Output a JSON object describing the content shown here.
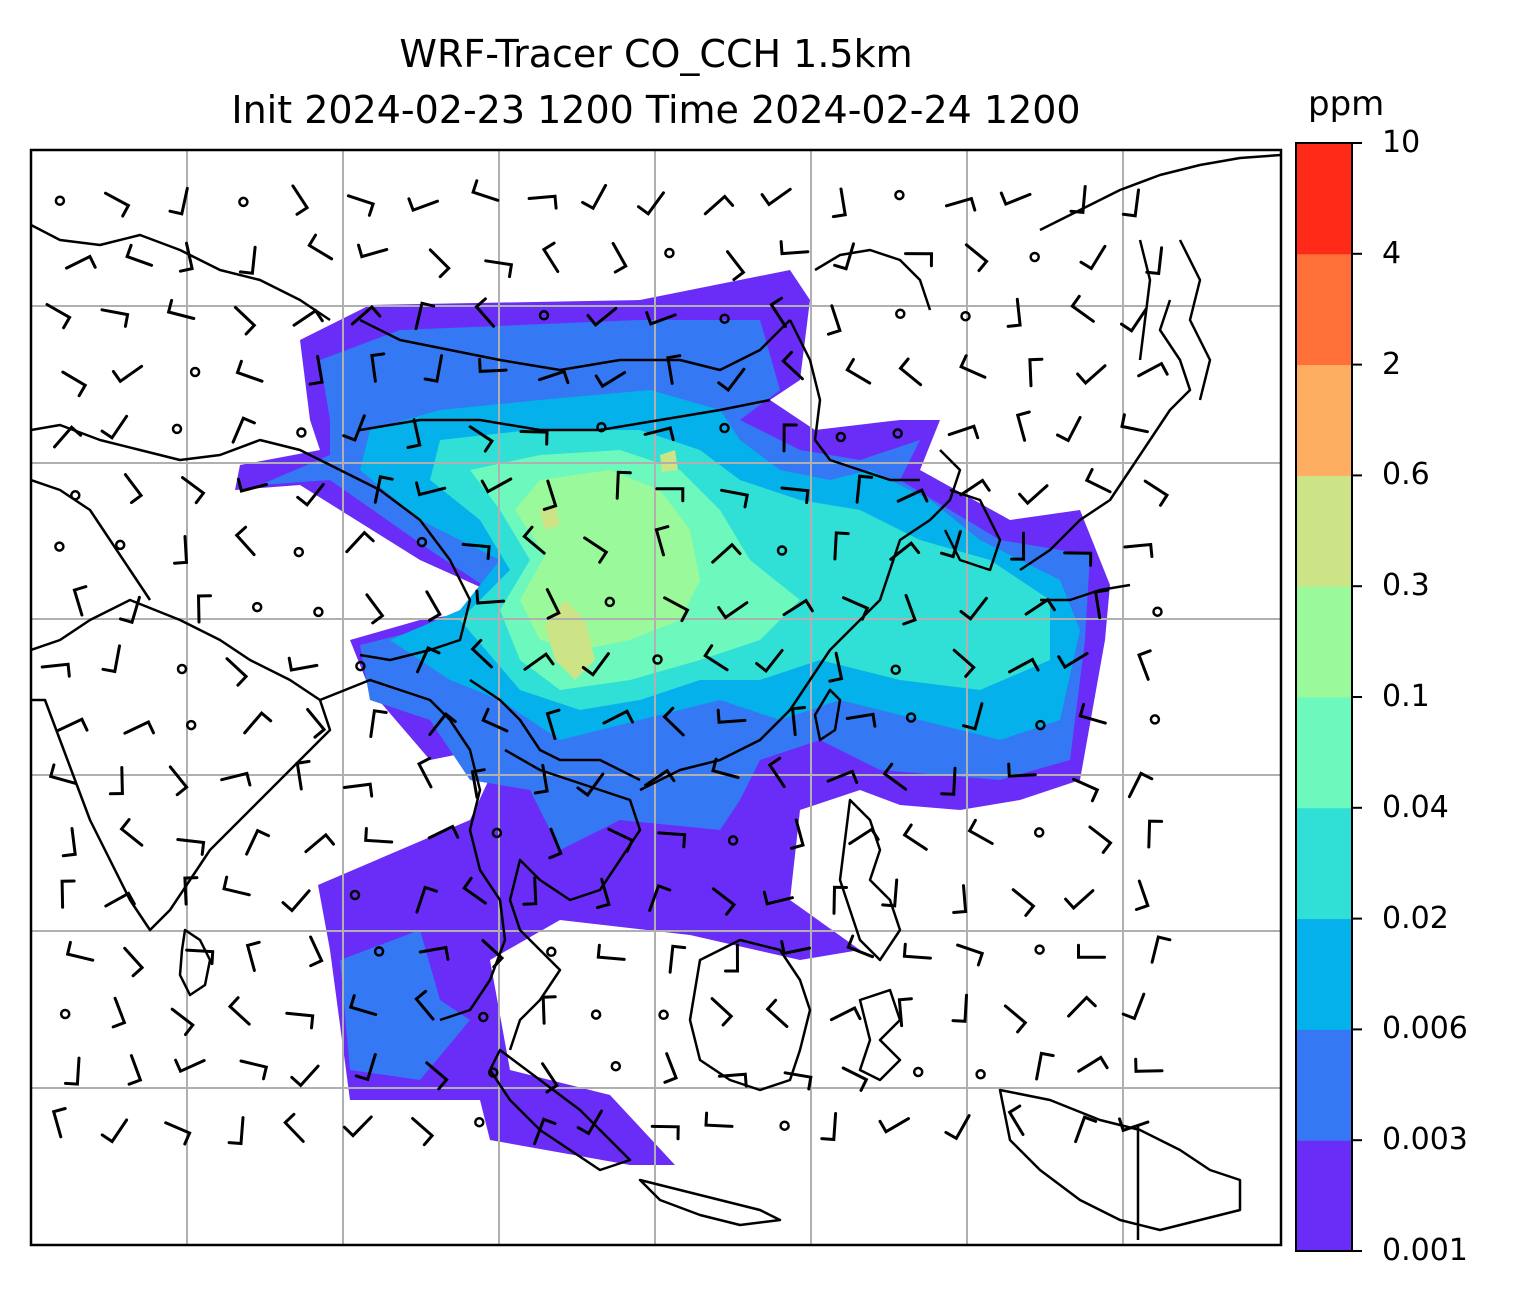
{
  "title": {
    "line1": "WRF-Tracer CO_CCH 1.5km",
    "line2": "Init 2024-02-23 1200 Time 2024-02-24 1200"
  },
  "colorbar": {
    "unit": "ppm",
    "levels": [
      "0.001",
      "0.003",
      "0.006",
      "0.02",
      "0.04",
      "0.1",
      "0.3",
      "0.6",
      "2",
      "4",
      "10"
    ],
    "colors": [
      "#6a2df7",
      "#3478f4",
      "#05b1ea",
      "#30dfd5",
      "#6df8bd",
      "#9af99b",
      "#cce386",
      "#fdae61",
      "#ff7138",
      "#ff2a17"
    ]
  },
  "map": {
    "coastline_color": "#000000",
    "grid_color": "#b0b0b0",
    "wind_barb_color": "#000000"
  }
}
